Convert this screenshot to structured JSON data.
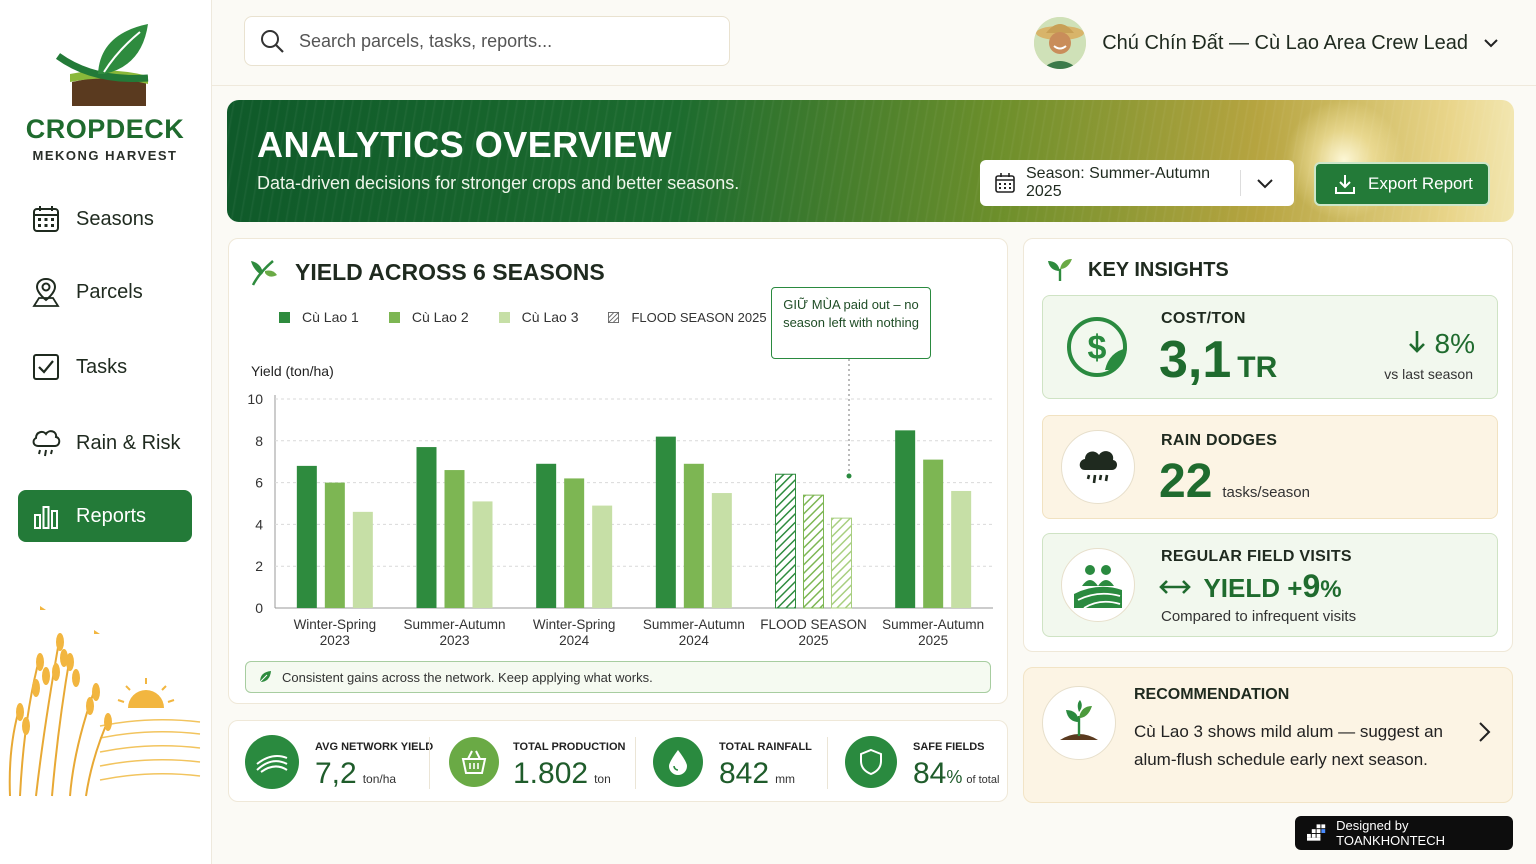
{
  "app": {
    "name": "CROPDECK",
    "subtitle": "MEKONG HARVEST"
  },
  "sidebar": {
    "items": [
      {
        "label": "Seasons",
        "icon": "calendar-icon"
      },
      {
        "label": "Parcels",
        "icon": "map-pin-icon"
      },
      {
        "label": "Tasks",
        "icon": "checkbox-icon"
      },
      {
        "label": "Rain & Risk",
        "icon": "rain-cloud-icon"
      },
      {
        "label": "Reports",
        "icon": "bar-chart-icon",
        "active": true
      }
    ]
  },
  "search": {
    "placeholder": "Search parcels, tasks, reports..."
  },
  "user": {
    "name": "Chú Chín Đất — Cù Lao Area Crew Lead"
  },
  "hero": {
    "title": "ANALYTICS OVERVIEW",
    "subtitle": "Data-driven decisions for stronger crops and better seasons.",
    "season_select": "Season: Summer-Autumn 2025",
    "export_label": "Export Report"
  },
  "yield_card": {
    "title": "YIELD ACROSS 6 SEASONS",
    "callout": "GIỮ MÙA paid out – no season left with nothing",
    "note": "Consistent gains across the network. Keep applying what works."
  },
  "chart_data": {
    "type": "bar",
    "ylabel": "Yield (ton/ha)",
    "ylim": [
      0,
      10
    ],
    "yticks": [
      0,
      2,
      4,
      6,
      8,
      10
    ],
    "grid": true,
    "legend_position": "top-left",
    "categories": [
      [
        "Winter-Spring",
        "2023"
      ],
      [
        "Summer-Autumn",
        "2023"
      ],
      [
        "Winter-Spring",
        "2024"
      ],
      [
        "Summer-Autumn",
        "2024"
      ],
      [
        "FLOOD SEASON",
        "2025"
      ],
      [
        "Summer-Autumn",
        "2025"
      ]
    ],
    "series": [
      {
        "name": "Cù Lao 1",
        "color": "#2e8b3e",
        "values": [
          6.8,
          7.7,
          6.9,
          8.2,
          6.4,
          8.5
        ]
      },
      {
        "name": "Cù Lao 2",
        "color": "#7db653",
        "values": [
          6.0,
          6.6,
          6.2,
          6.9,
          5.4,
          7.1
        ]
      },
      {
        "name": "Cù Lao 3",
        "color": "#c6dfa6",
        "values": [
          4.6,
          5.1,
          4.9,
          5.5,
          4.3,
          5.6
        ]
      }
    ],
    "hatched_category_index": 4,
    "hatched_legend": "FLOOD SEASON 2025"
  },
  "stats": [
    {
      "label": "AVG NETWORK YIELD",
      "value": "7,2",
      "unit": "ton/ha",
      "icon": "field-icon",
      "color": "#2a8a3f"
    },
    {
      "label": "TOTAL PRODUCTION",
      "value": "1.802",
      "unit": "ton",
      "icon": "basket-icon",
      "color": "#6aaa45"
    },
    {
      "label": "TOTAL RAINFALL",
      "value": "842",
      "unit": "mm",
      "icon": "water-drop-icon",
      "color": "#2a8a3f"
    },
    {
      "label": "SAFE FIELDS",
      "value": "84",
      "value_suffix": "%",
      "unit": "of total",
      "icon": "shield-icon",
      "color": "#2a8a3f"
    }
  ],
  "insights": {
    "title": "KEY INSIGHTS",
    "cost": {
      "label": "COST/TON",
      "value": "3,1",
      "unit": "TR",
      "change": "8%",
      "change_note": "vs last season"
    },
    "rain": {
      "label": "RAIN DODGES",
      "value": "22",
      "unit": "tasks/season"
    },
    "visits": {
      "label": "REGULAR FIELD VISITS",
      "metric_label": "YIELD +",
      "metric_value": "9",
      "metric_suffix": "%",
      "note": "Compared to infrequent visits"
    }
  },
  "recommendation": {
    "title": "RECOMMENDATION",
    "text": "Cù Lao 3 shows mild alum — suggest an alum-flush schedule early next season."
  },
  "footer": {
    "designed_by": "Designed by TOANKHONTECH"
  }
}
